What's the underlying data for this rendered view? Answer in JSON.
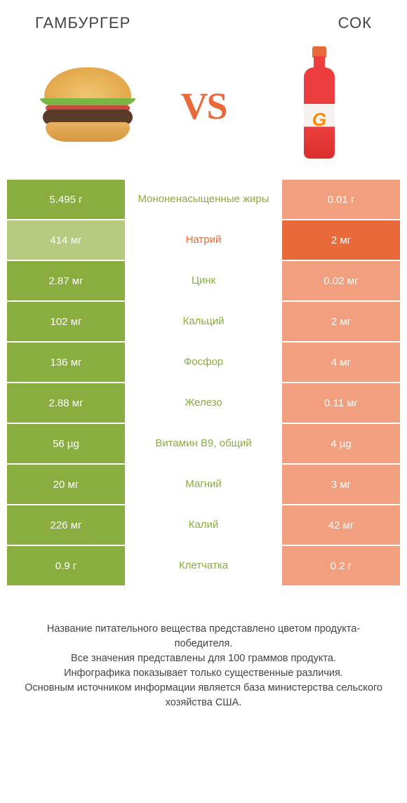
{
  "titles": {
    "left": "ГАМБУРГЕР",
    "right": "СОК"
  },
  "vs": "VS",
  "colors": {
    "left_win": "#8aad3f",
    "left_lose": "#a7c063",
    "right_win": "#e9693a",
    "right_lose": "#ee8a62",
    "fade_opacity": 0.82
  },
  "rows": [
    {
      "left": "5.495 г",
      "label": "Мононенасыщенные жиры",
      "right": "0.01 г",
      "winner": "left"
    },
    {
      "left": "414 мг",
      "label": "Натрий",
      "right": "2 мг",
      "winner": "right"
    },
    {
      "left": "2.87 мг",
      "label": "Цинк",
      "right": "0.02 мг",
      "winner": "left"
    },
    {
      "left": "102 мг",
      "label": "Кальций",
      "right": "2 мг",
      "winner": "left"
    },
    {
      "left": "136 мг",
      "label": "Фосфор",
      "right": "4 мг",
      "winner": "left"
    },
    {
      "left": "2.88 мг",
      "label": "Железо",
      "right": "0.11 мг",
      "winner": "left"
    },
    {
      "left": "56 µg",
      "label": "Витамин B9, общий",
      "right": "4 µg",
      "winner": "left"
    },
    {
      "left": "20 мг",
      "label": "Магний",
      "right": "3 мг",
      "winner": "left"
    },
    {
      "left": "226 мг",
      "label": "Калий",
      "right": "42 мг",
      "winner": "left"
    },
    {
      "left": "0.9 г",
      "label": "Клетчатка",
      "right": "0.2 г",
      "winner": "left"
    }
  ],
  "footer": [
    "Название питательного вещества представлено цветом продукта-победителя.",
    "Все значения представлены для 100 граммов продукта.",
    "Инфографика показывает только существенные различия.",
    "Основным источником информации является база министерства сельского хозяйства США."
  ],
  "bottle_label": "G"
}
